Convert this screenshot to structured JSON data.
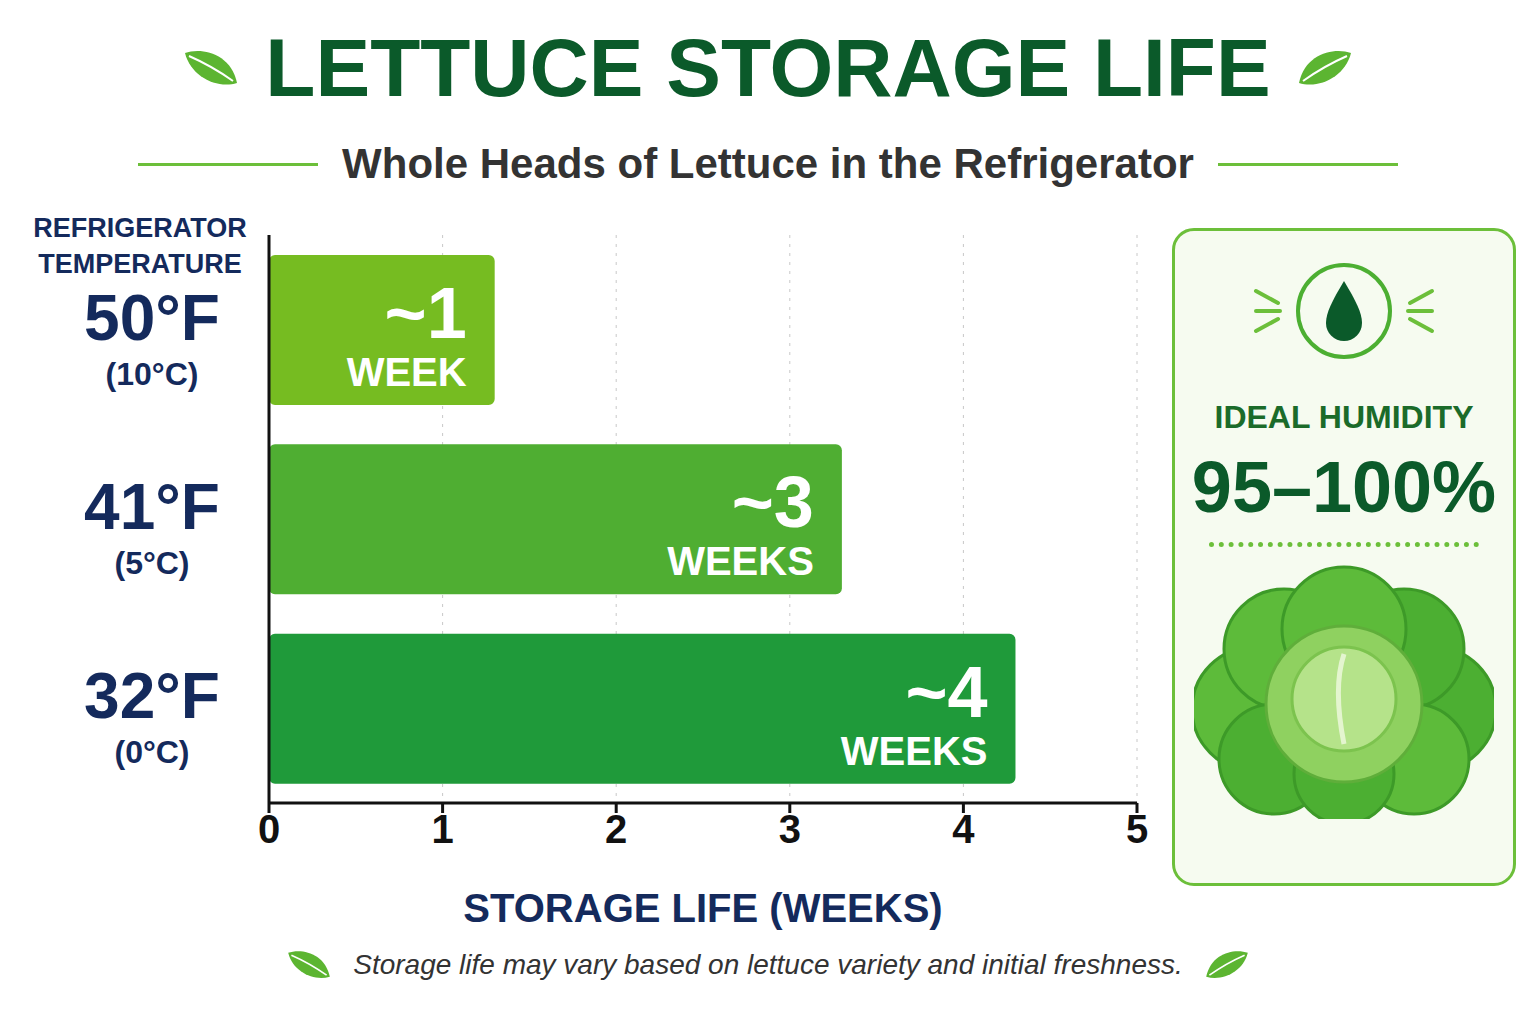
{
  "chart_data": {
    "type": "bar",
    "orientation": "horizontal",
    "title": "LETTUCE STORAGE LIFE",
    "subtitle": "Whole Heads of Lettuce in the Refrigerator",
    "y_label": "REFRIGERATOR TEMPERATURE",
    "x_label": "STORAGE LIFE (WEEKS)",
    "categories": [
      "50°F (10°C)",
      "41°F (5°C)",
      "32°F (0°C)"
    ],
    "values": [
      1.3,
      3.3,
      4.3
    ],
    "value_labels": [
      "~1 WEEK",
      "~3 WEEKS",
      "~4 WEEKS"
    ],
    "data_labels": true,
    "colors": [
      "#76bc21",
      "#4fae32",
      "#1f9a3a"
    ],
    "xlim": [
      0,
      5
    ],
    "xticks": [
      0,
      1,
      2,
      3,
      4,
      5
    ],
    "grid": true,
    "annotations": {
      "humidity_title": "IDEAL HUMIDITY",
      "humidity_value": "95–100%",
      "footnote": "Storage life may vary based on lettuce variety and initial freshness."
    }
  }
}
